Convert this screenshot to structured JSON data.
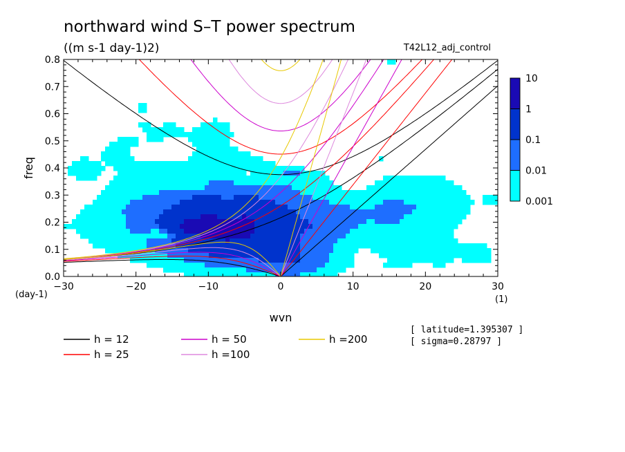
{
  "chart_data": {
    "type": "heatmap",
    "title": "northward wind S–T power spectrum",
    "units": "((m s-1 day-1)2)",
    "experiment": "T42L12_adj_control",
    "xlabel": "wvn",
    "ylabel": "freq",
    "y_unit": "(day-1)",
    "x_unit": "(1)",
    "xlim": [
      -30,
      30
    ],
    "ylim": [
      0,
      0.8
    ],
    "x_ticks": [
      "−30",
      "−20",
      "−10",
      "0",
      "10",
      "20",
      "30"
    ],
    "x_tick_values": [
      -30,
      -20,
      -10,
      0,
      10,
      20,
      30
    ],
    "y_ticks": [
      "0.0",
      "0.1",
      "0.2",
      "0.3",
      "0.4",
      "0.5",
      "0.6",
      "0.7",
      "0.8"
    ],
    "y_tick_values": [
      0,
      0.1,
      0.2,
      0.3,
      0.4,
      0.5,
      0.6,
      0.7,
      0.8
    ],
    "colorbar": {
      "levels": [
        "0.001",
        "0.01",
        "0.1",
        "1",
        "10"
      ],
      "colors": [
        "#00ffff",
        "#1e6eff",
        "#0033cc",
        "#1a0ab4"
      ]
    },
    "info": [
      "[ latitude=1.395307 ]",
      "[ sigma=0.28797 ]"
    ],
    "dispersion_curves": [
      {
        "name": "h = 12",
        "h": 12,
        "color": "#000000"
      },
      {
        "name": "h = 25",
        "h": 25,
        "color": "#ff0000"
      },
      {
        "name": "h = 50",
        "h": 50,
        "color": "#cc00cc"
      },
      {
        "name": "h =100",
        "h": 100,
        "color": "#dd88dd"
      },
      {
        "name": "h =200",
        "h": 200,
        "color": "#e8c800"
      }
    ]
  }
}
